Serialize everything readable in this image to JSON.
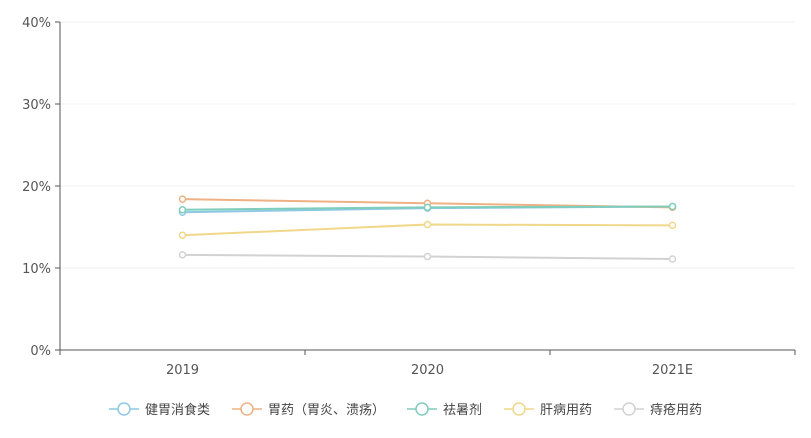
{
  "chart_data": {
    "type": "line",
    "title": "",
    "xlabel": "",
    "ylabel": "",
    "categories": [
      "2019",
      "2020",
      "2021E"
    ],
    "y_ticks": [
      "0%",
      "10%",
      "20%",
      "30%",
      "40%"
    ],
    "ylim": [
      0,
      40
    ],
    "grid": true,
    "legend_position": "bottom",
    "series": [
      {
        "name": "健胃消食类",
        "values": [
          16.8,
          17.3,
          17.5
        ],
        "color": "#8ec8e4"
      },
      {
        "name": "胃药（胃炎、溃疡）",
        "values": [
          18.4,
          17.9,
          17.4
        ],
        "color": "#efb183"
      },
      {
        "name": "祛暑剂",
        "values": [
          17.1,
          17.4,
          17.5
        ],
        "color": "#7fcdbb"
      },
      {
        "name": "肝病用药",
        "values": [
          14.0,
          15.3,
          15.2
        ],
        "color": "#f0d78a"
      },
      {
        "name": "痔疮用药",
        "values": [
          11.6,
          11.4,
          11.1
        ],
        "color": "#d2d2d2"
      }
    ]
  }
}
